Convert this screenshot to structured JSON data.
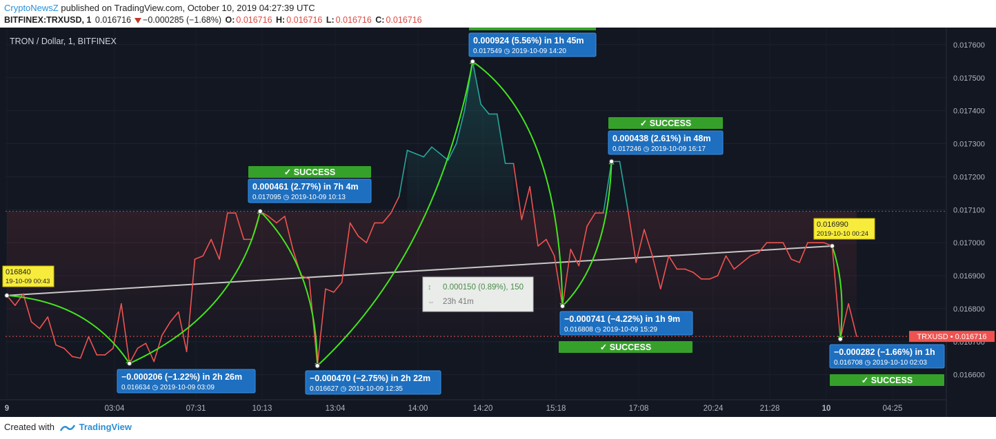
{
  "header": {
    "publisher": "CryptoNewsZ",
    "published_text": "published on TradingView.com, October 10, 2019 04:27:39 UTC",
    "symbol": "BITFINEX:TRXUSD, 1",
    "last": "0.016716",
    "change": "−0.000285 (−1.68%)",
    "o_label": "O:",
    "o": "0.016716",
    "h_label": "H:",
    "h": "0.016716",
    "l_label": "L:",
    "l": "0.016716",
    "c_label": "C:",
    "c": "0.016716"
  },
  "chart_title": "TRON / Dollar, 1, BITFINEX",
  "footer": {
    "created_with": "Created with",
    "brand": "TradingView"
  },
  "price_badge": "TRXUSD • 0.016716",
  "measure": {
    "line1": "0.000150 (0.89%), 150",
    "line2": "23h 41m"
  },
  "annotations": {
    "start": {
      "price": "016840",
      "date": "19-10-09 00:43"
    },
    "end": {
      "price": "0.016990",
      "date": "2019-10-10 00:24"
    }
  },
  "callouts": [
    {
      "main": "−0.000206 (−1.22%) in 2h 26m",
      "sub": "0.016634 ◷ 2019-10-09  03:09",
      "success": ""
    },
    {
      "main": "0.000461 (2.77%) in 7h 4m",
      "sub": "0.017095 ◷ 2019-10-09  10:13",
      "success": "✓  SUCCESS"
    },
    {
      "main": "−0.000470 (−2.75%) in 2h 22m",
      "sub": "0.016627 ◷ 2019-10-09  12:35",
      "success": ""
    },
    {
      "main": "0.000924 (5.56%) in 1h 45m",
      "sub": "0.017549 ◷ 2019-10-09  14:20",
      "success": ""
    },
    {
      "main": "−0.000741 (−4.22%) in 1h 9m",
      "sub": "0.016808 ◷ 2019-10-09  15:29",
      "success": "✓  SUCCESS"
    },
    {
      "main": "0.000438 (2.61%) in 48m",
      "sub": "0.017246 ◷ 2019-10-09  16:17",
      "success": "✓  SUCCESS"
    },
    {
      "main": "−0.000282 (−1.66%) in 1h",
      "sub": "0.016708 ◷ 2019-10-10  02:03",
      "success": "✓  SUCCESS"
    }
  ],
  "chart_data": {
    "type": "line",
    "title": "TRON / Dollar, 1, BITFINEX",
    "y_ticks": [
      "0.017600",
      "0.017500",
      "0.017400",
      "0.017300",
      "0.017200",
      "0.017100",
      "0.017000",
      "0.016900",
      "0.016800",
      "0.016700",
      "0.016600"
    ],
    "x_ticks": [
      "9",
      "03:04",
      "07:31",
      "10:13",
      "13:04",
      "14:00",
      "14:20",
      "15:18",
      "17:08",
      "20:24",
      "21:28",
      "10",
      "04:25"
    ],
    "ylim": [
      0.016545,
      0.017652
    ],
    "colors": {
      "line_red": "#ef5350",
      "line_teal": "#26a69a",
      "arrow": "#44e51e",
      "trend": "#c8c8c8",
      "callout": "#1e6fbf",
      "success": "#36a12a"
    },
    "series": [
      {
        "values": [
          0.01684,
          0.01681,
          0.016845,
          0.01676,
          0.01674,
          0.016775,
          0.01669,
          0.01668,
          0.016655,
          0.01665,
          0.016715,
          0.01666,
          0.01666,
          0.01668,
          0.016815,
          0.016634,
          0.01668,
          0.016695,
          0.01664,
          0.01672,
          0.01676,
          0.01679,
          0.01667,
          0.01695,
          0.01696,
          0.01701,
          0.01695,
          0.01709,
          0.01709,
          0.01701,
          0.01701,
          0.017095,
          0.01708,
          0.01706,
          0.01708,
          0.01698,
          0.0169,
          0.01689,
          0.016627,
          0.01686,
          0.01685,
          0.01688,
          0.01706,
          0.01702,
          0.017,
          0.01706,
          0.01706,
          0.01709,
          0.01714,
          0.01728,
          0.01727,
          0.01726,
          0.01729,
          0.01727,
          0.01725,
          0.0173,
          0.0174,
          0.017549,
          0.01742,
          0.01739,
          0.01739,
          0.01724,
          0.01724,
          0.01707,
          0.01717,
          0.01699,
          0.01701,
          0.01696,
          0.016808,
          0.01698,
          0.01693,
          0.01705,
          0.01709,
          0.01709,
          0.017246,
          0.017246,
          0.0171,
          0.01694,
          0.01704,
          0.01696,
          0.01686,
          0.01696,
          0.01692,
          0.01692,
          0.01691,
          0.01689,
          0.01689,
          0.0169,
          0.01696,
          0.01692,
          0.01694,
          0.01696,
          0.01697,
          0.017,
          0.017,
          0.017,
          0.01695,
          0.01694,
          0.017,
          0.017,
          0.017,
          0.01699,
          0.016708,
          0.016815,
          0.016716
        ]
      }
    ]
  }
}
